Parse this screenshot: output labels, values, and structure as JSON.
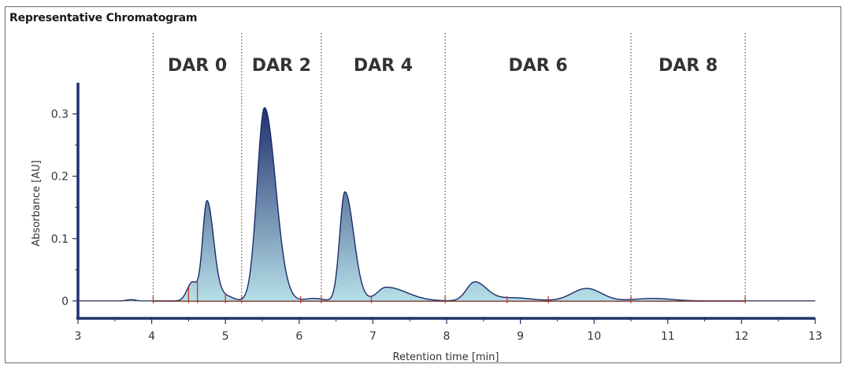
{
  "window": {
    "title": "Representative Chromatogram"
  },
  "chart_data": {
    "type": "line",
    "title": "Representative Chromatogram",
    "xlabel": "Retention time [min]",
    "ylabel": "Absorbance [AU]",
    "xlim": [
      3,
      13
    ],
    "ylim": [
      -0.028,
      0.35
    ],
    "x_ticks": [
      3,
      4,
      5,
      6,
      7,
      8,
      9,
      10,
      11,
      12,
      13
    ],
    "y_ticks": [
      0,
      0.1,
      0.2,
      0.3
    ],
    "y_tick_labels": [
      "0",
      "0.1",
      "0.2",
      "0.3"
    ],
    "grid": false,
    "regions": [
      {
        "label": "DAR 0",
        "start": 4.02,
        "end": 5.22
      },
      {
        "label": "DAR 2",
        "start": 5.22,
        "end": 6.3
      },
      {
        "label": "DAR 4",
        "start": 6.3,
        "end": 7.98
      },
      {
        "label": "DAR 6",
        "start": 7.98,
        "end": 10.5
      },
      {
        "label": "DAR 8",
        "start": 10.5,
        "end": 12.05
      }
    ],
    "integration_markers_x": [
      4.02,
      4.5,
      4.62,
      5.0,
      5.22,
      6.02,
      6.3,
      6.98,
      7.98,
      8.82,
      9.38,
      10.5,
      12.05
    ],
    "series": [
      {
        "peaks": [
          {
            "rt": 4.55,
            "height": 0.03,
            "width": 0.07
          },
          {
            "rt": 4.75,
            "height": 0.16,
            "width_left": 0.06,
            "width_right": 0.09
          },
          {
            "rt": 5.0,
            "height": 0.008,
            "width": 0.1
          },
          {
            "rt": 5.53,
            "height": 0.31,
            "width_left": 0.1,
            "width_right": 0.15
          },
          {
            "rt": 6.2,
            "height": 0.004,
            "width": 0.12
          },
          {
            "rt": 6.62,
            "height": 0.175,
            "width_left": 0.07,
            "width_right": 0.12
          },
          {
            "rt": 7.18,
            "height": 0.022,
            "width_left": 0.12,
            "width_right": 0.28
          },
          {
            "rt": 8.38,
            "height": 0.03,
            "width_left": 0.11,
            "width_right": 0.16
          },
          {
            "rt": 8.9,
            "height": 0.005,
            "width": 0.25
          },
          {
            "rt": 9.9,
            "height": 0.02,
            "width_left": 0.2,
            "width_right": 0.2
          },
          {
            "rt": 10.8,
            "height": 0.004,
            "width": 0.25
          },
          {
            "rt": 3.72,
            "height": 0.002,
            "width": 0.06
          }
        ]
      }
    ],
    "colors": {
      "peak_dark": "#1c2b6b",
      "peak_light": "#b9e3ea",
      "axis": "#24306e",
      "region_line": "#555555",
      "baseline": "#c0392b"
    }
  }
}
